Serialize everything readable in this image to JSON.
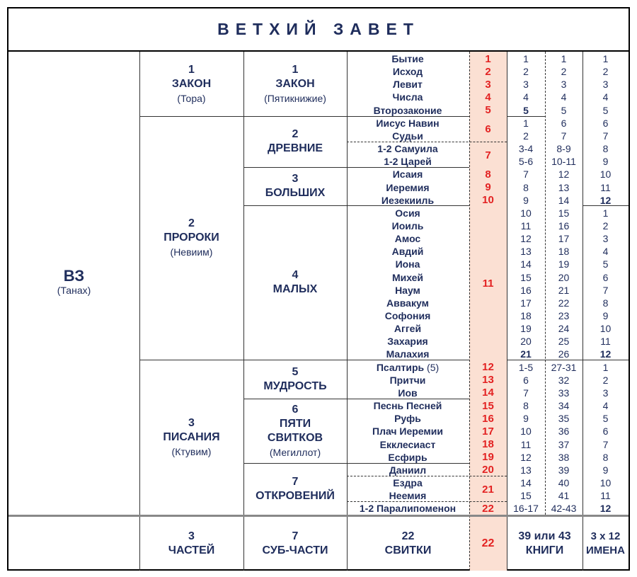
{
  "title": "ВЕТХИЙ  ЗАВЕТ",
  "root": {
    "label": "ВЗ",
    "sub": "(Танах)"
  },
  "parts": [
    {
      "num": "1",
      "label": "ЗАКОН",
      "sub": "(Тора)"
    },
    {
      "num": "2",
      "label": "ПРОРОКИ",
      "sub": "(Невиим)"
    },
    {
      "num": "3",
      "label": "ПИСАНИЯ",
      "sub": "(Ктувим)"
    }
  ],
  "subparts": [
    {
      "num": "1",
      "label": "ЗАКОН",
      "sub": "(Пятикнижие)"
    },
    {
      "num": "2",
      "label": "ДРЕВНИЕ",
      "sub": ""
    },
    {
      "num": "3",
      "label": "БОЛЬШИХ",
      "sub": ""
    },
    {
      "num": "4",
      "label": "МАЛЫХ",
      "sub": ""
    },
    {
      "num": "5",
      "label": "МУДРОСТЬ",
      "sub": ""
    },
    {
      "num": "6",
      "label": "ПЯТИ",
      "label2": "СВИТКОВ",
      "sub": "(Мегиллот)"
    },
    {
      "num": "7",
      "label": "ОТКРОВЕНИЙ",
      "sub": ""
    }
  ],
  "books": [
    {
      "name": "Бытие",
      "c1": "1",
      "c2": "1",
      "c3": "1"
    },
    {
      "name": "Исход",
      "c1": "2",
      "c2": "2",
      "c3": "2"
    },
    {
      "name": "Левит",
      "c1": "3",
      "c2": "3",
      "c3": "3"
    },
    {
      "name": "Числа",
      "c1": "4",
      "c2": "4",
      "c3": "4"
    },
    {
      "name": "Второзаконие",
      "c1": "5",
      "c2": "5",
      "c3": "5"
    },
    {
      "name": "Иисус Навин",
      "c1": "1",
      "c2": "6",
      "c3": "6"
    },
    {
      "name": "Судьи",
      "c1": "2",
      "c2": "7",
      "c3": "7"
    },
    {
      "name": "1-2 Самуила",
      "c1": "3-4",
      "c2": "8-9",
      "c3": "8"
    },
    {
      "name": "1-2 Царей",
      "c1": "5-6",
      "c2": "10-11",
      "c3": "9"
    },
    {
      "name": "Исаия",
      "c1": "7",
      "c2": "12",
      "c3": "10"
    },
    {
      "name": "Иеремия",
      "c1": "8",
      "c2": "13",
      "c3": "11"
    },
    {
      "name": "Иезекииль",
      "c1": "9",
      "c2": "14",
      "c3": "12"
    },
    {
      "name": "Осия",
      "c1": "10",
      "c2": "15",
      "c3": "1"
    },
    {
      "name": "Иоиль",
      "c1": "11",
      "c2": "16",
      "c3": "2"
    },
    {
      "name": "Амос",
      "c1": "12",
      "c2": "17",
      "c3": "3"
    },
    {
      "name": "Авдий",
      "c1": "13",
      "c2": "18",
      "c3": "4"
    },
    {
      "name": "Иона",
      "c1": "14",
      "c2": "19",
      "c3": "5"
    },
    {
      "name": "Михей",
      "c1": "15",
      "c2": "20",
      "c3": "6"
    },
    {
      "name": "Наум",
      "c1": "16",
      "c2": "21",
      "c3": "7"
    },
    {
      "name": "Аввакум",
      "c1": "17",
      "c2": "22",
      "c3": "8"
    },
    {
      "name": "Софония",
      "c1": "18",
      "c2": "23",
      "c3": "9"
    },
    {
      "name": "Аггей",
      "c1": "19",
      "c2": "24",
      "c3": "10"
    },
    {
      "name": "Захария",
      "c1": "20",
      "c2": "25",
      "c3": "11"
    },
    {
      "name": "Малахия",
      "c1": "21",
      "c2": "26",
      "c3": "12"
    },
    {
      "name": "Псалтирь",
      "extra": "(5)",
      "c1": "1-5",
      "c2": "27-31",
      "c3": "1"
    },
    {
      "name": "Притчи",
      "c1": "6",
      "c2": "32",
      "c3": "2"
    },
    {
      "name": "Иов",
      "c1": "7",
      "c2": "33",
      "c3": "3"
    },
    {
      "name": "Песнь Песней",
      "c1": "8",
      "c2": "34",
      "c3": "4"
    },
    {
      "name": "Руфь",
      "c1": "9",
      "c2": "35",
      "c3": "5"
    },
    {
      "name": "Плач Иеремии",
      "c1": "10",
      "c2": "36",
      "c3": "6"
    },
    {
      "name": "Екклесиаст",
      "c1": "11",
      "c2": "37",
      "c3": "7"
    },
    {
      "name": "Есфирь",
      "c1": "12",
      "c2": "38",
      "c3": "8"
    },
    {
      "name": "Даниил",
      "c1": "13",
      "c2": "39",
      "c3": "9"
    },
    {
      "name": "Ездра",
      "c1": "14",
      "c2": "40",
      "c3": "10"
    },
    {
      "name": "Неемия",
      "c1": "15",
      "c2": "41",
      "c3": "11"
    },
    {
      "name": "1-2 Паралипоменон",
      "c1": "16-17",
      "c2": "42-43",
      "c3": "12"
    }
  ],
  "scrolls": [
    "1",
    "2",
    "3",
    "4",
    "5",
    "6",
    "7",
    "8",
    "9",
    "10",
    "11",
    "12",
    "13",
    "14",
    "15",
    "16",
    "17",
    "18",
    "19",
    "20",
    "21",
    "22"
  ],
  "footer": {
    "parts_num": "3",
    "parts_label": "ЧАСТЕЙ",
    "sub_num": "7",
    "sub_label": "СУБ-ЧАСТИ",
    "scrolls_num": "22",
    "scrolls_label": "СВИТКИ",
    "scrolls_total": "22",
    "books_num": "39 или 43",
    "books_label": "КНИГИ",
    "names_num": "3 х 12",
    "names_label": "ИМЕНА"
  },
  "colors": {
    "text": "#1f2d5c",
    "red": "#e32222",
    "highlight": "#fbe0d3"
  }
}
